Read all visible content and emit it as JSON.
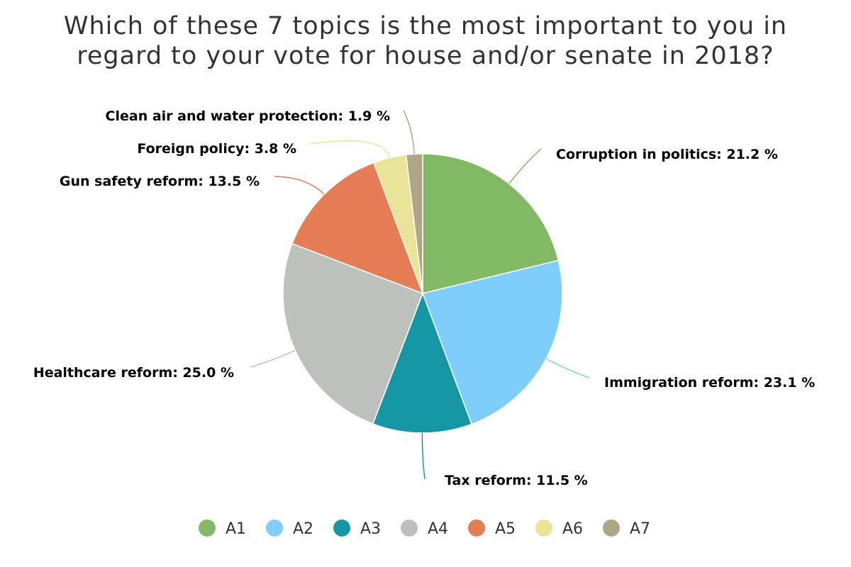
{
  "chart_data": {
    "type": "pie",
    "title": "Which of these 7 topics is the most important to you in regard to your vote for house and/or senate in 2018?",
    "title_lines": [
      "Which of these 7 topics is the most important to you in",
      "regard to your vote for house and/or senate in 2018?"
    ],
    "slices": [
      {
        "legend": "A1",
        "label": "Corruption in politics: 21.2 %",
        "value": 21.2,
        "color": "#82b964"
      },
      {
        "legend": "A2",
        "label": "Immigration reform: 23.1 %",
        "value": 23.1,
        "color": "#7fcdfb"
      },
      {
        "legend": "A3",
        "label": "Tax reform: 11.5 %",
        "value": 11.5,
        "color": "#1697a6"
      },
      {
        "legend": "A4",
        "label": "Healthcare reform: 25.0 %",
        "value": 25.0,
        "color": "#bdc1bd"
      },
      {
        "legend": "A5",
        "label": "Gun safety reform: 13.5 %",
        "value": 13.5,
        "color": "#e57e55"
      },
      {
        "legend": "A6",
        "label": "Foreign policy: 3.8 %",
        "value": 3.8,
        "color": "#e9e497"
      },
      {
        "legend": "A7",
        "label": "Clean air and water protection: 1.9 %",
        "value": 1.9,
        "color": "#b1a587"
      }
    ],
    "legend_position": "bottom"
  }
}
